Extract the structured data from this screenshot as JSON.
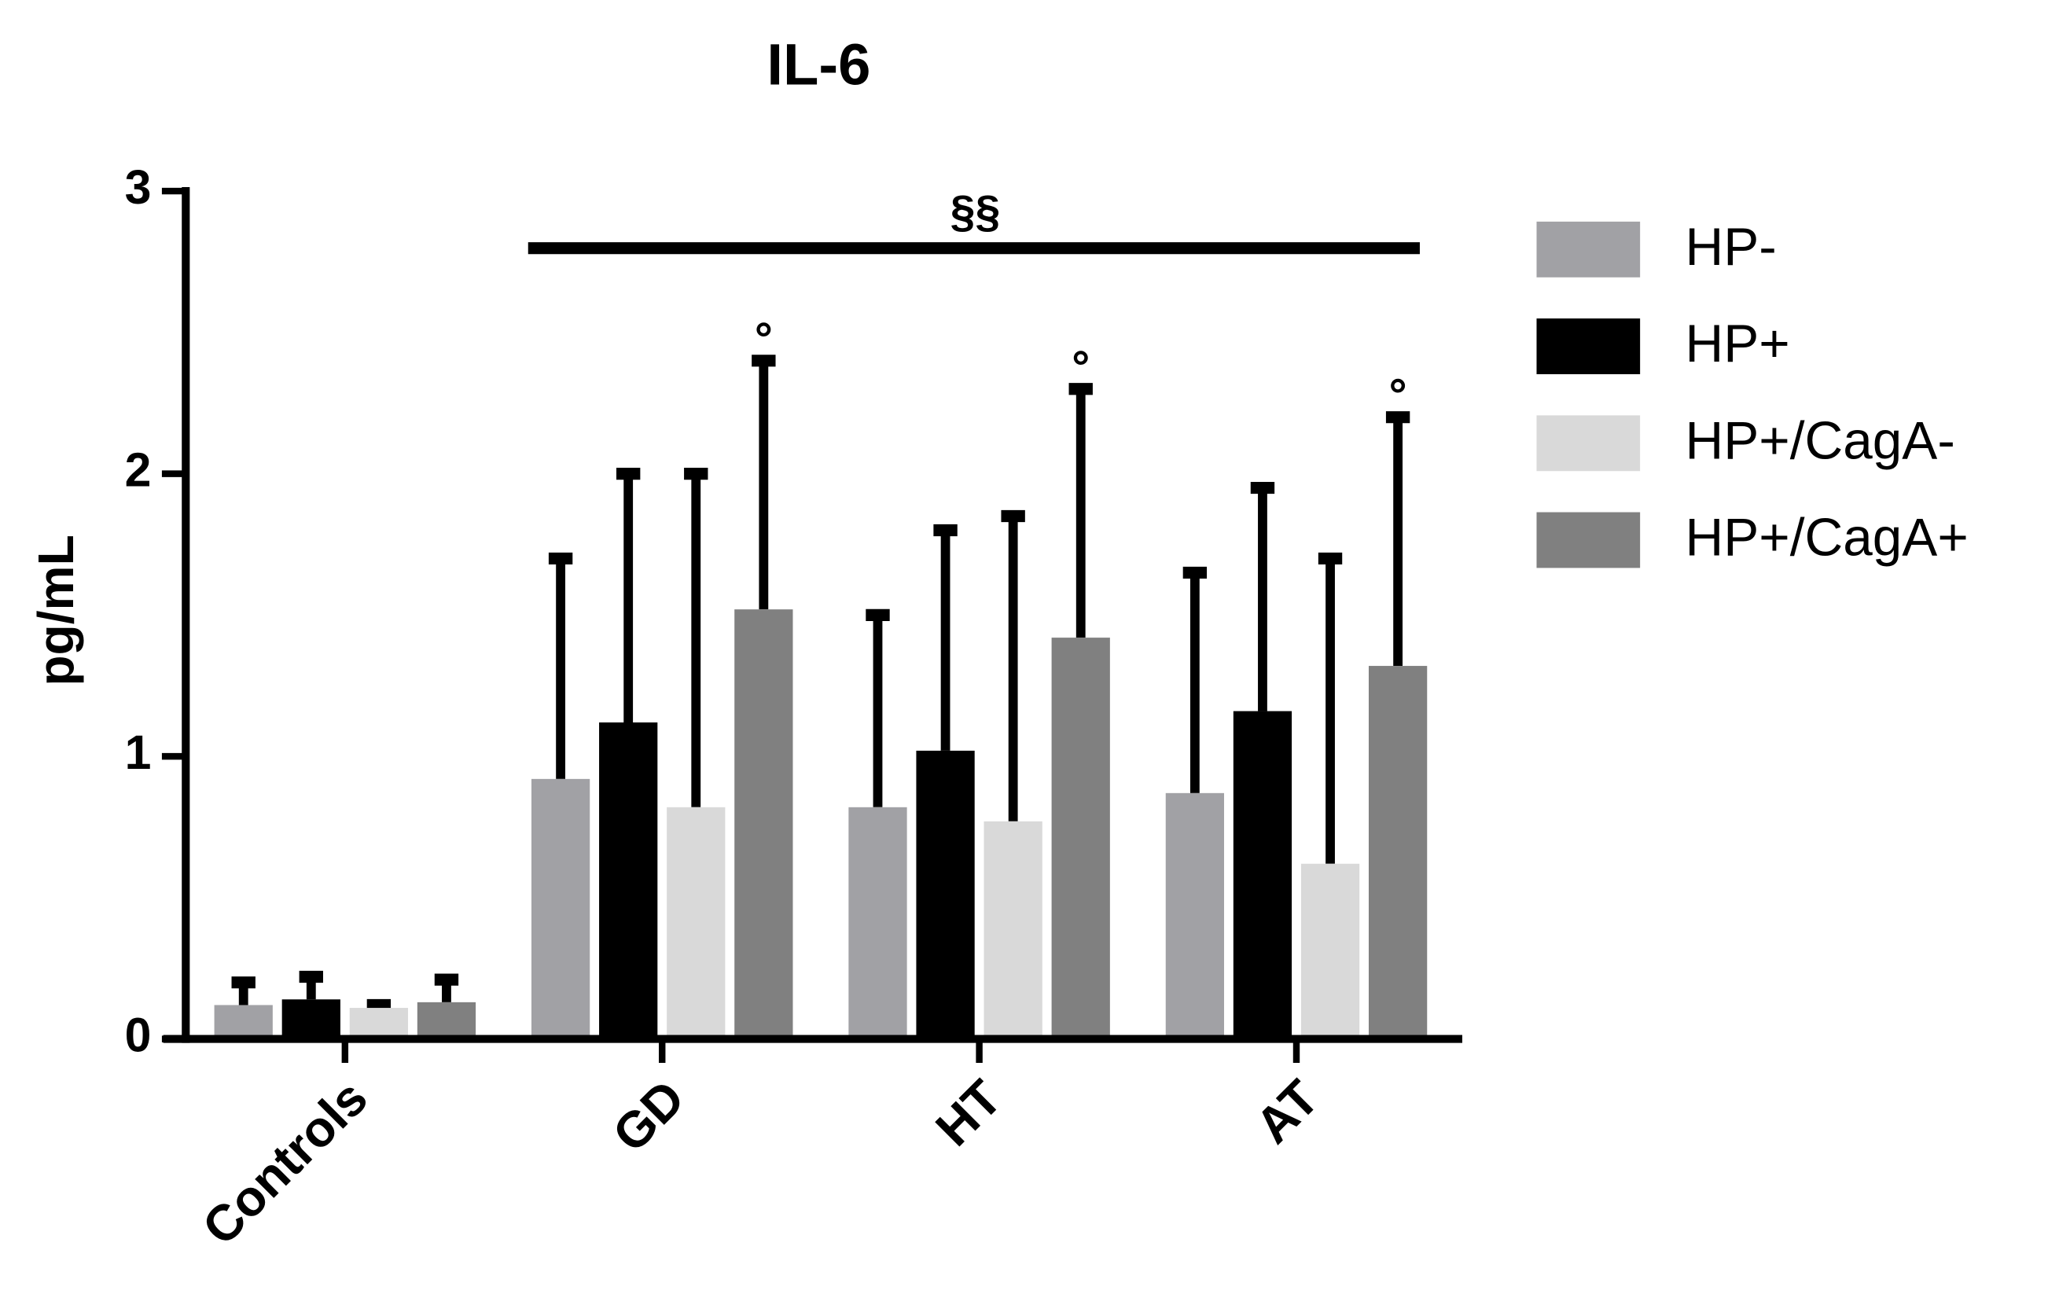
{
  "chart_data": {
    "type": "bar",
    "title": "IL-6",
    "y_label": "pg/mL",
    "categories": [
      "Controls",
      "GD",
      "HT",
      "AT"
    ],
    "series": [
      {
        "name": "HP-",
        "color": "#a1a1a5",
        "values": [
          0.12,
          0.92,
          0.82,
          0.87
        ],
        "errors": [
          0.08,
          0.78,
          0.68,
          0.78
        ]
      },
      {
        "name": "HP+",
        "color": "#000000",
        "values": [
          0.14,
          1.12,
          1.02,
          1.16
        ],
        "errors": [
          0.08,
          0.88,
          0.78,
          0.79
        ]
      },
      {
        "name": "HP+/CagA-",
        "color": "#d9d9d9",
        "values": [
          0.11,
          0.82,
          0.77,
          0.62
        ],
        "errors": [
          0.01,
          1.18,
          1.08,
          1.08
        ]
      },
      {
        "name": "HP+/CagA+",
        "color": "#808080",
        "values": [
          0.13,
          1.52,
          1.42,
          1.32
        ],
        "errors": [
          0.08,
          0.88,
          0.88,
          0.88
        ]
      }
    ],
    "ylim": [
      0,
      3
    ],
    "yticks": [
      0,
      1,
      2,
      3
    ],
    "annotations": [
      "§§",
      "°",
      "°",
      "°"
    ]
  }
}
